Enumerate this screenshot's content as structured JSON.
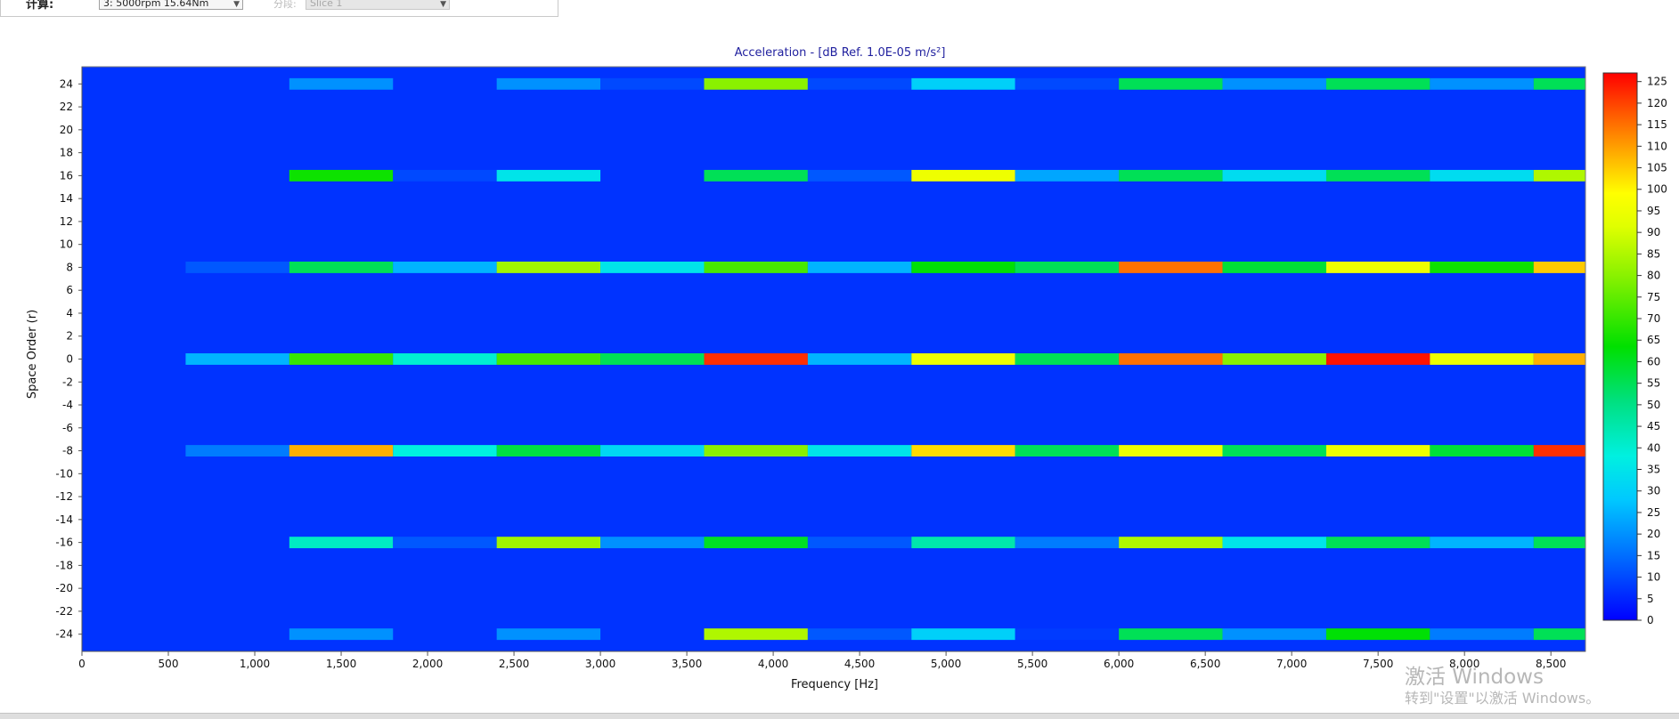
{
  "toolbar": {
    "calc_label": "计算:",
    "calc_value": "3: 5000rpm 15.64Nm",
    "slice_label": "分段:",
    "slice_value": "Slice 1"
  },
  "watermark": {
    "line1": "激活 Windows",
    "line2": "转到\"设置\"以激活 Windows。"
  },
  "chart_data": {
    "type": "heatmap",
    "title": "Acceleration - [dB Ref. 1.0E-05 m/s²]",
    "xlabel": "Frequency [Hz]",
    "ylabel": "Space Order (r)",
    "xlim": [
      0,
      8700
    ],
    "ylim": [
      -25.5,
      25.5
    ],
    "x_ticks": [
      0,
      500,
      1000,
      1500,
      2000,
      2500,
      3000,
      3500,
      4000,
      4500,
      5000,
      5500,
      6000,
      6500,
      7000,
      7500,
      8000,
      8500
    ],
    "x_tick_labels": [
      "0",
      "500",
      "1,000",
      "1,500",
      "2,000",
      "2,500",
      "3,000",
      "3,500",
      "4,000",
      "4,500",
      "5,000",
      "5,500",
      "6,000",
      "6,500",
      "7,000",
      "7,500",
      "8,000",
      "8,500"
    ],
    "y_ticks": [
      24,
      22,
      20,
      18,
      16,
      14,
      12,
      10,
      8,
      6,
      4,
      2,
      0,
      -2,
      -4,
      -6,
      -8,
      -10,
      -12,
      -14,
      -16,
      -18,
      -20,
      -22,
      -24
    ],
    "colorbar": {
      "min": 0,
      "max": 127,
      "ticks": [
        125,
        120,
        115,
        110,
        105,
        100,
        95,
        90,
        85,
        80,
        75,
        70,
        65,
        60,
        55,
        50,
        45,
        40,
        35,
        30,
        25,
        20,
        15,
        10,
        5,
        0
      ],
      "background_value": 0
    },
    "grid": false,
    "bin_width_hz": 600,
    "bin_starts_hz": [
      600,
      1200,
      1800,
      2400,
      3000,
      3600,
      4200,
      4800,
      5400,
      6000,
      6600,
      7200,
      7800,
      8400
    ],
    "rows": [
      {
        "order": 24,
        "values": [
          0,
          20,
          0,
          20,
          10,
          80,
          10,
          30,
          10,
          55,
          20,
          55,
          20,
          55
        ]
      },
      {
        "order": 16,
        "values": [
          0,
          65,
          10,
          35,
          0,
          55,
          12,
          95,
          23,
          55,
          33,
          55,
          33,
          85
        ]
      },
      {
        "order": 8,
        "values": [
          12,
          55,
          25,
          83,
          35,
          72,
          25,
          63,
          55,
          115,
          58,
          95,
          65,
          105
        ]
      },
      {
        "order": 0,
        "values": [
          25,
          70,
          40,
          72,
          55,
          122,
          25,
          95,
          55,
          115,
          80,
          125,
          95,
          108
        ]
      },
      {
        "order": -8,
        "values": [
          17,
          108,
          38,
          57,
          32,
          80,
          35,
          103,
          55,
          95,
          55,
          95,
          58,
          122
        ]
      },
      {
        "order": -16,
        "values": [
          0,
          42,
          12,
          83,
          20,
          60,
          12,
          45,
          17,
          85,
          35,
          55,
          25,
          55
        ]
      },
      {
        "order": -24,
        "values": [
          0,
          20,
          0,
          20,
          0,
          85,
          12,
          30,
          8,
          55,
          20,
          63,
          17,
          55
        ]
      }
    ]
  }
}
